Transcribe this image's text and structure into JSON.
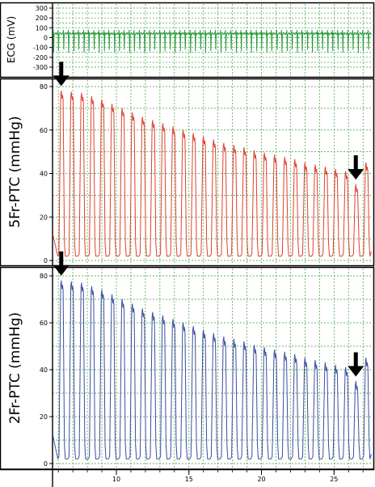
{
  "chart_data": [
    {
      "type": "line",
      "ylabel": "ECG (mV)",
      "yticks": [
        300,
        200,
        100,
        0,
        -100,
        -200,
        -300
      ],
      "ylim": [
        -300,
        300
      ],
      "xlim": [
        5.6,
        27.6
      ],
      "grid": true,
      "series": [
        {
          "color": "#2a9a3c",
          "baseline": 40,
          "r_peak": 75,
          "s_trough": -150
        }
      ]
    },
    {
      "type": "line",
      "ylabel": "5Fr-PTC (mmHg)",
      "yticks": [
        80,
        60,
        40,
        20,
        0
      ],
      "ylim": [
        -3,
        84
      ],
      "xlim": [
        5.6,
        27.6
      ],
      "grid": true,
      "series": [
        {
          "color": "#e0402e",
          "peak_times": [
            6.2,
            6.9,
            7.6,
            8.3,
            9.0,
            9.7,
            10.4,
            11.1,
            11.8,
            12.5,
            13.2,
            13.9,
            14.6,
            15.3,
            16.0,
            16.7,
            17.4,
            18.1,
            18.8,
            19.5,
            20.2,
            20.9,
            21.6,
            22.3,
            23.0,
            23.7,
            24.4,
            25.1,
            25.8,
            26.5,
            27.2
          ],
          "peak_values": [
            78,
            77.5,
            77,
            75.5,
            74,
            72,
            70,
            68,
            66,
            64.5,
            63,
            61.5,
            60,
            58.5,
            57,
            55.5,
            54,
            53,
            52,
            50.5,
            49.5,
            48.5,
            47.5,
            46.5,
            45,
            44,
            43,
            42,
            41,
            35,
            45
          ],
          "trough_value": 2
        }
      ],
      "annotations": [
        {
          "type": "arrow",
          "x": 6.2,
          "y": 78
        },
        {
          "type": "arrow",
          "x": 26.5,
          "y": 35
        }
      ]
    },
    {
      "type": "line",
      "ylabel": "2Fr-PTC (mmHg)",
      "yticks": [
        80,
        60,
        40,
        20,
        0
      ],
      "ylim": [
        -3,
        84
      ],
      "xlim": [
        5.6,
        27.6
      ],
      "xticks": [
        10,
        15,
        20,
        25
      ],
      "grid": true,
      "series": [
        {
          "color": "#3a4ea0",
          "peak_times": [
            6.2,
            6.9,
            7.6,
            8.3,
            9.0,
            9.7,
            10.4,
            11.1,
            11.8,
            12.5,
            13.2,
            13.9,
            14.6,
            15.3,
            16.0,
            16.7,
            17.4,
            18.1,
            18.8,
            19.5,
            20.2,
            20.9,
            21.6,
            22.3,
            23.0,
            23.7,
            24.4,
            25.1,
            25.8,
            26.5,
            27.2
          ],
          "peak_values": [
            78,
            77.5,
            77,
            75.5,
            74,
            72,
            70,
            68,
            66,
            64.5,
            63,
            61.5,
            60,
            58.5,
            57,
            55.5,
            54,
            53,
            52,
            50.5,
            49.5,
            48.5,
            47.5,
            46.5,
            45,
            44,
            43,
            42,
            41,
            35,
            45
          ],
          "trough_value": 2
        }
      ],
      "annotations": [
        {
          "type": "arrow",
          "x": 6.2,
          "y": 78
        },
        {
          "type": "arrow",
          "x": 26.5,
          "y": 35
        }
      ]
    }
  ]
}
